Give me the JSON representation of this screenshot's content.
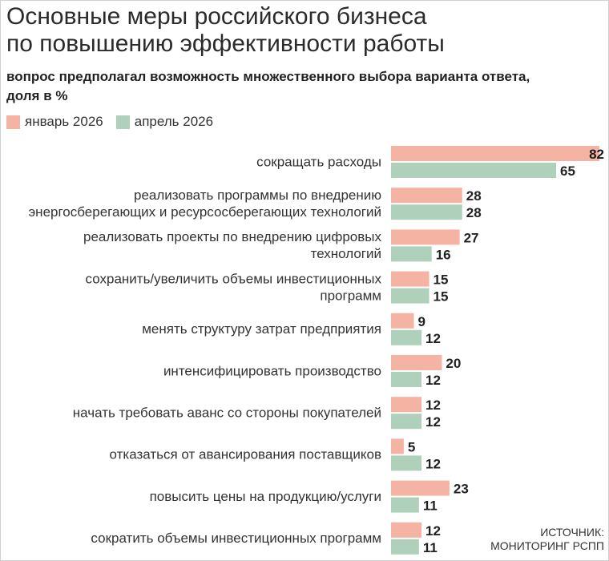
{
  "header": {
    "title_line1": "Основные меры российского бизнеса",
    "title_line2": "по повышению эффективности работы",
    "subtitle_line1": "вопрос предполагал возможность множественного выбора варианта ответа,",
    "subtitle_line2": "доля в %"
  },
  "colors": {
    "series1": "#f5b3a3",
    "series2": "#afd1bb"
  },
  "legend": [
    {
      "label": "январь 2026"
    },
    {
      "label": "апрель 2026"
    }
  ],
  "source": {
    "line1": "ИСТОЧНИК:",
    "line2": "МОНИТОРИНГ РСПП"
  },
  "chart_data": {
    "type": "bar",
    "orientation": "horizontal",
    "unit": "%",
    "categories": [
      [
        "сокращать расходы"
      ],
      [
        "реализовать программы по внедрению",
        "энергосберегающих и ресурсосберегающих технологий"
      ],
      [
        "реализовать проекты по внедрению цифровых",
        "технологий"
      ],
      [
        "сохранить/увеличить объемы инвестиционных",
        "программ"
      ],
      [
        "менять структуру затрат предприятия"
      ],
      [
        "интенсифицировать производство"
      ],
      [
        "начать требовать аванс со стороны покупателей"
      ],
      [
        "отказаться от авансирования поставщиков"
      ],
      [
        "повысить цены на продукцию/услуги"
      ],
      [
        "сократить объемы инвестиционных программ"
      ]
    ],
    "series": [
      {
        "name": "январь 2026",
        "values": [
          82,
          28,
          27,
          15,
          9,
          20,
          12,
          5,
          23,
          12
        ]
      },
      {
        "name": "апрель 2026",
        "values": [
          65,
          28,
          16,
          15,
          12,
          12,
          12,
          12,
          11,
          11
        ]
      }
    ]
  }
}
